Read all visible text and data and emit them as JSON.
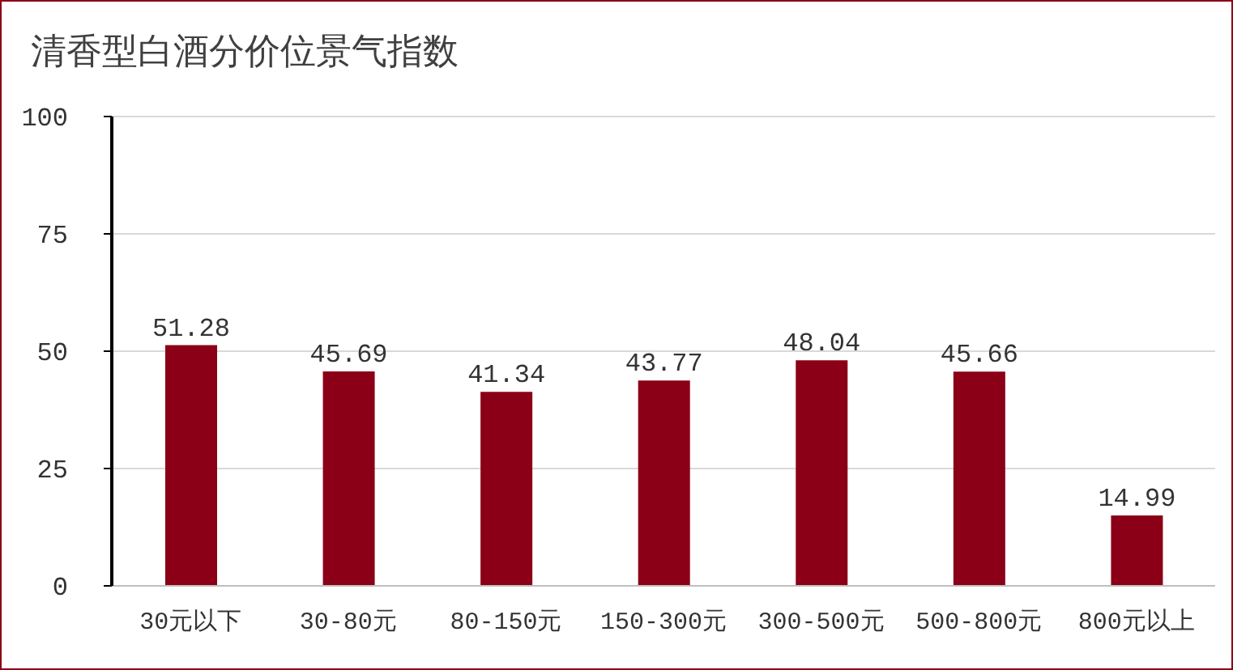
{
  "chart_data": {
    "type": "bar",
    "title": "清香型白酒分价位景气指数",
    "categories": [
      "30元以下",
      "30-80元",
      "80-150元",
      "150-300元",
      "300-500元",
      "500-800元",
      "800元以上"
    ],
    "series": [
      {
        "color": "#8b0016",
        "values": [
          51.28,
          45.69,
          41.34,
          43.77,
          48.04,
          45.66,
          14.99
        ]
      }
    ],
    "ylim": [
      0,
      100
    ],
    "yticks": [
      0,
      25,
      50,
      75,
      100
    ],
    "grid": "y",
    "data_labels": true,
    "legend": false
  }
}
